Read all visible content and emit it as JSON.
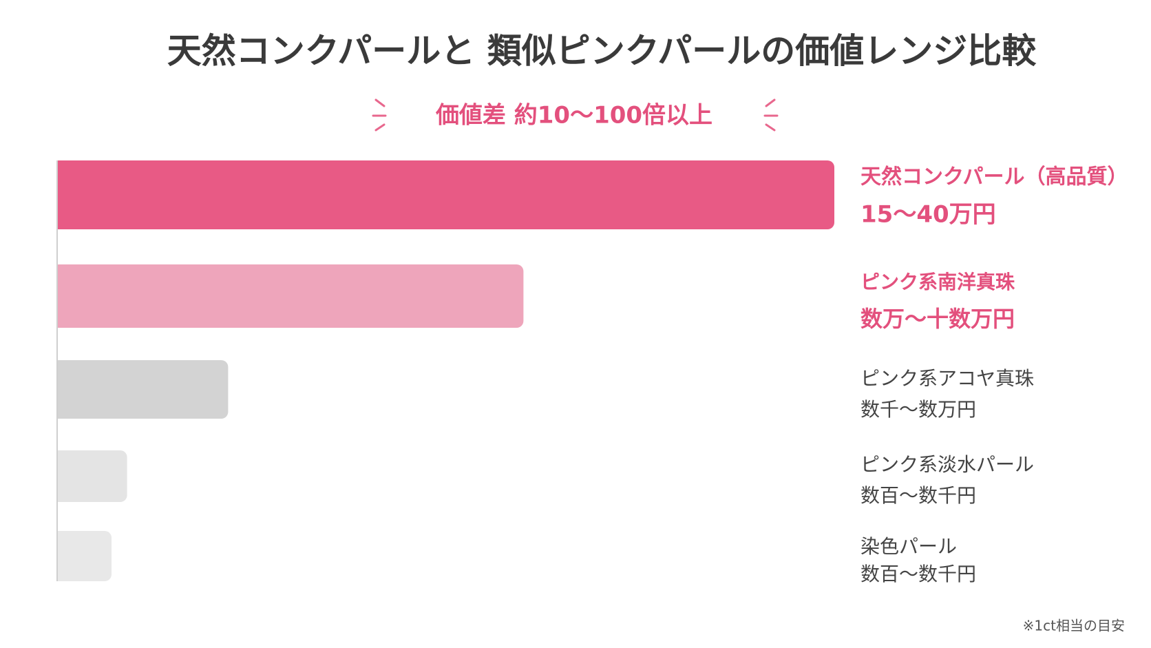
{
  "chart_data": {
    "type": "hbar",
    "title": "天然コンクパールと 類似ピンクパールの価値レンジ比較",
    "subtitle": "価値差 約10〜100倍以上",
    "categories": [
      "天然コンクパール（高品質）",
      "ピンク系南洋真珠",
      "ピンク系アコヤ真珠",
      "ピンク系淡水パール",
      "染色パール"
    ],
    "values": [
      100,
      60,
      22,
      9,
      7
    ],
    "value_labels": [
      "15〜40万円",
      "数万〜十数万円",
      "数千〜数万円",
      "数百〜数千円",
      "数百〜数千円"
    ],
    "colors": [
      "#e85a85",
      "#eea5bb",
      "#d3d3d3",
      "#e4e4e4",
      "#e8e8e8"
    ],
    "label_colors": [
      "#e3507d",
      "#e3507d",
      "#444444",
      "#444444",
      "#444444"
    ],
    "xlim": [
      0,
      100
    ],
    "note": "※1ct相当の目安"
  }
}
